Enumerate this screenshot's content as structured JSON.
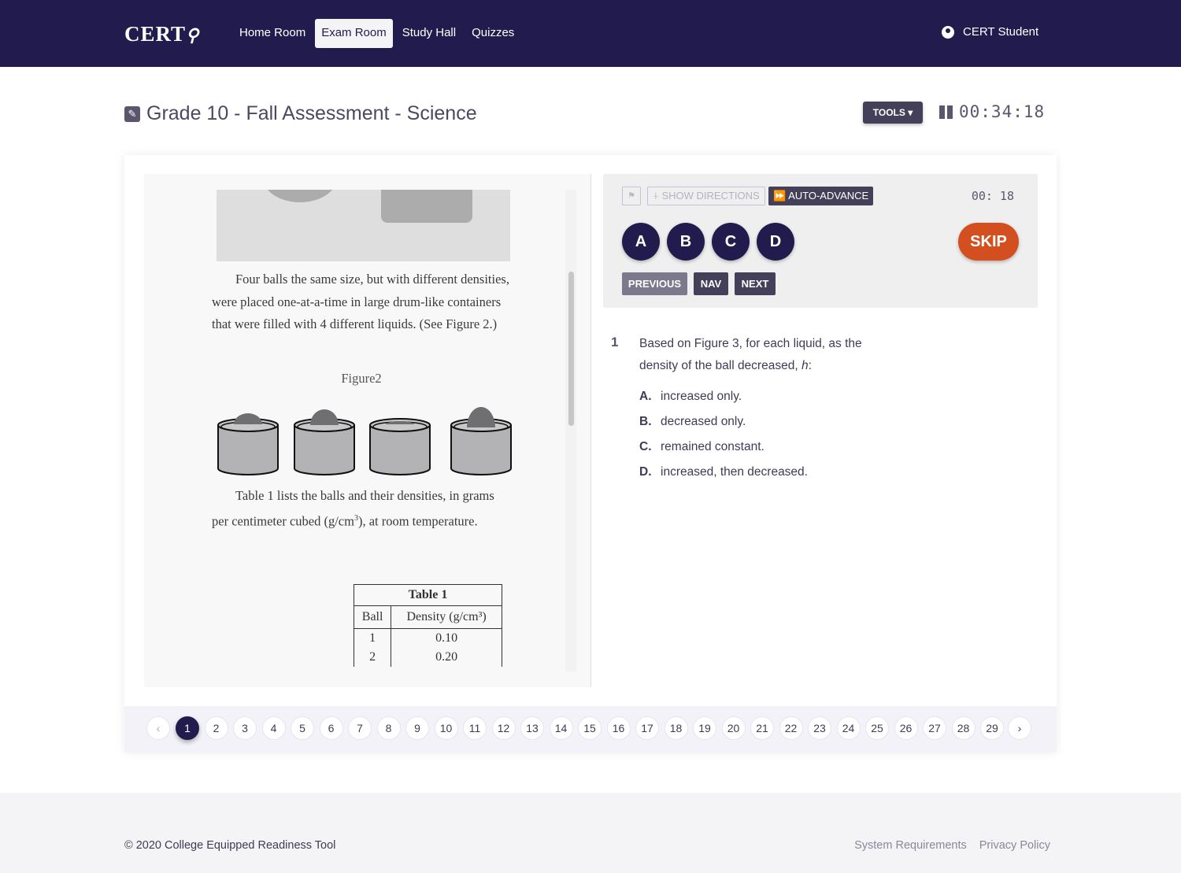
{
  "nav": {
    "logo": "CERT",
    "items": [
      {
        "label": "Home Room",
        "active": false
      },
      {
        "label": "Exam Room",
        "active": true
      },
      {
        "label": "Study Hall",
        "active": false
      },
      {
        "label": "Quizzes",
        "active": false
      }
    ],
    "user": "CERT Student"
  },
  "exam": {
    "title": "Grade 10 - Fall Assessment - Science",
    "tools_label": "TOOLS",
    "timer": "00:34:18"
  },
  "passage": {
    "paragraph1": "Four balls the same size, but with different densities, were placed one-at-a-time in large drum-like containers that were filled with 4 different liquids. (See Figure 2.)",
    "figure_caption": "Figure2",
    "paragraph2_a": "Table 1 lists the balls and their densities, in grams per centimeter cubed (g/cm",
    "paragraph2_sup": "3",
    "paragraph2_b": "), at room temperature.",
    "table": {
      "title": "Table 1",
      "headers": [
        "Ball",
        "Density (g/cm³)"
      ],
      "rows": [
        [
          "1",
          "0.10"
        ],
        [
          "2",
          "0.20"
        ]
      ]
    }
  },
  "controls": {
    "flag_icon": "flag-icon",
    "show_directions": "SHOW DIRECTIONS",
    "auto_advance": "AUTO-ADVANCE",
    "question_timer": "00: 18",
    "answers": [
      "A",
      "B",
      "C",
      "D"
    ],
    "skip": "SKIP",
    "previous": "PREVIOUS",
    "nav": "NAV",
    "next": "NEXT"
  },
  "question": {
    "number": "1",
    "text": "Based on Figure 3, for each liquid, as the density of the ball decreased,",
    "variable": "h",
    "text_end": ":",
    "options": [
      {
        "letter": "A.",
        "text": "increased only."
      },
      {
        "letter": "B.",
        "text": "decreased only."
      },
      {
        "letter": "C.",
        "text": "remained constant."
      },
      {
        "letter": "D.",
        "text": "increased, then decreased."
      }
    ]
  },
  "pagination": {
    "prev": "‹",
    "next": "›",
    "current": "1",
    "pages": [
      "1",
      "2",
      "3",
      "4",
      "5",
      "6",
      "7",
      "8",
      "9",
      "10",
      "11",
      "12",
      "13",
      "14",
      "15",
      "16",
      "17",
      "18",
      "19",
      "20",
      "21",
      "22",
      "23",
      "24",
      "25",
      "26",
      "27",
      "28",
      "29"
    ]
  },
  "footer": {
    "copyright": "© 2020 College Equipped Readiness Tool",
    "links": [
      "System Requirements",
      "Privacy Policy"
    ]
  },
  "colors": {
    "nav": "#221c4e",
    "answer": "#221c4e",
    "skip": "#d44f1f",
    "dark_button": "#45405a"
  }
}
